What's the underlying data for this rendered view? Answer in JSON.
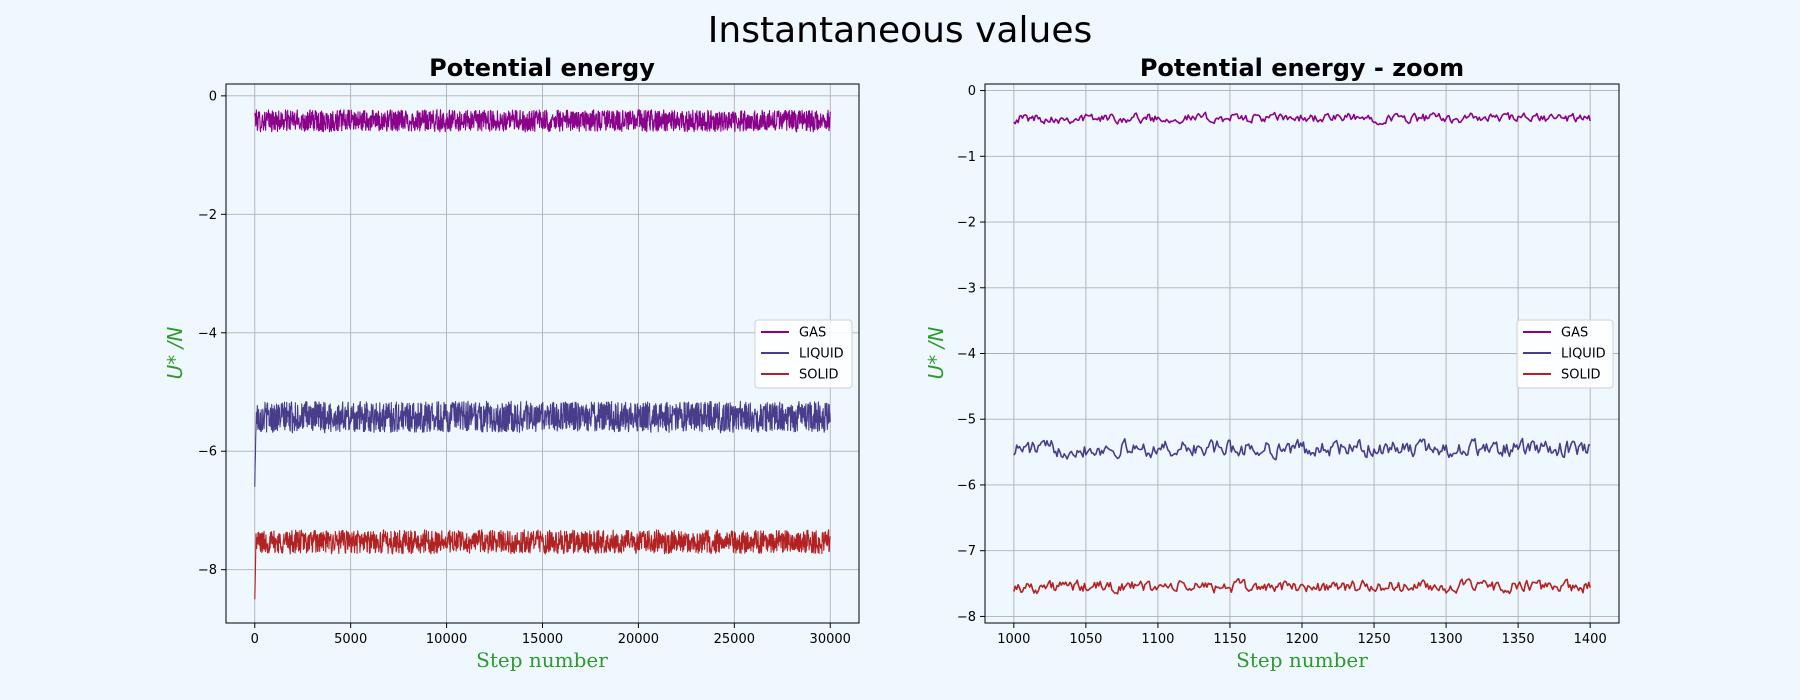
{
  "figure": {
    "suptitle": "Instantaneous values",
    "background": "#f0f8ff",
    "label_color": "#2e9a2e"
  },
  "chart_data": [
    {
      "type": "line",
      "title": "Potential energy",
      "xlabel": "Step number",
      "ylabel": "U* /N",
      "xlim": [
        -1500,
        31500
      ],
      "ylim": [
        -8.9,
        0.2
      ],
      "xticks": [
        0,
        5000,
        10000,
        15000,
        20000,
        25000,
        30000
      ],
      "yticks": [
        0,
        -2,
        -4,
        -6,
        -8
      ],
      "grid": true,
      "legend_position": "center-right",
      "noise_density": "dense",
      "series": [
        {
          "name": "GAS",
          "color": "#8b008b",
          "x": [
            0,
            30000
          ],
          "mean": -0.42,
          "amplitude": 0.12,
          "start": -0.3
        },
        {
          "name": "LIQUID",
          "color": "#483d8b",
          "x": [
            0,
            30000
          ],
          "mean": -5.42,
          "amplitude": 0.17,
          "start": -6.6
        },
        {
          "name": "SOLID",
          "color": "#b22222",
          "x": [
            0,
            30000
          ],
          "mean": -7.53,
          "amplitude": 0.13,
          "start": -8.5
        }
      ]
    },
    {
      "type": "line",
      "title": "Potential energy - zoom",
      "xlabel": "Step number",
      "ylabel": "U* /N",
      "xlim": [
        980,
        1420
      ],
      "ylim": [
        -8.1,
        0.1
      ],
      "xticks": [
        1000,
        1050,
        1100,
        1150,
        1200,
        1250,
        1300,
        1350,
        1400
      ],
      "yticks": [
        0,
        -1,
        -2,
        -3,
        -4,
        -5,
        -6,
        -7,
        -8
      ],
      "grid": true,
      "legend_position": "center-right",
      "noise_density": "sparse",
      "series": [
        {
          "name": "GAS",
          "color": "#8b008b",
          "x": [
            1000,
            1400
          ],
          "mean": -0.42,
          "amplitude": 0.07
        },
        {
          "name": "LIQUID",
          "color": "#483d8b",
          "x": [
            1000,
            1400
          ],
          "mean": -5.45,
          "amplitude": 0.12
        },
        {
          "name": "SOLID",
          "color": "#b22222",
          "x": [
            1000,
            1400
          ],
          "mean": -7.55,
          "amplitude": 0.09
        }
      ]
    }
  ]
}
